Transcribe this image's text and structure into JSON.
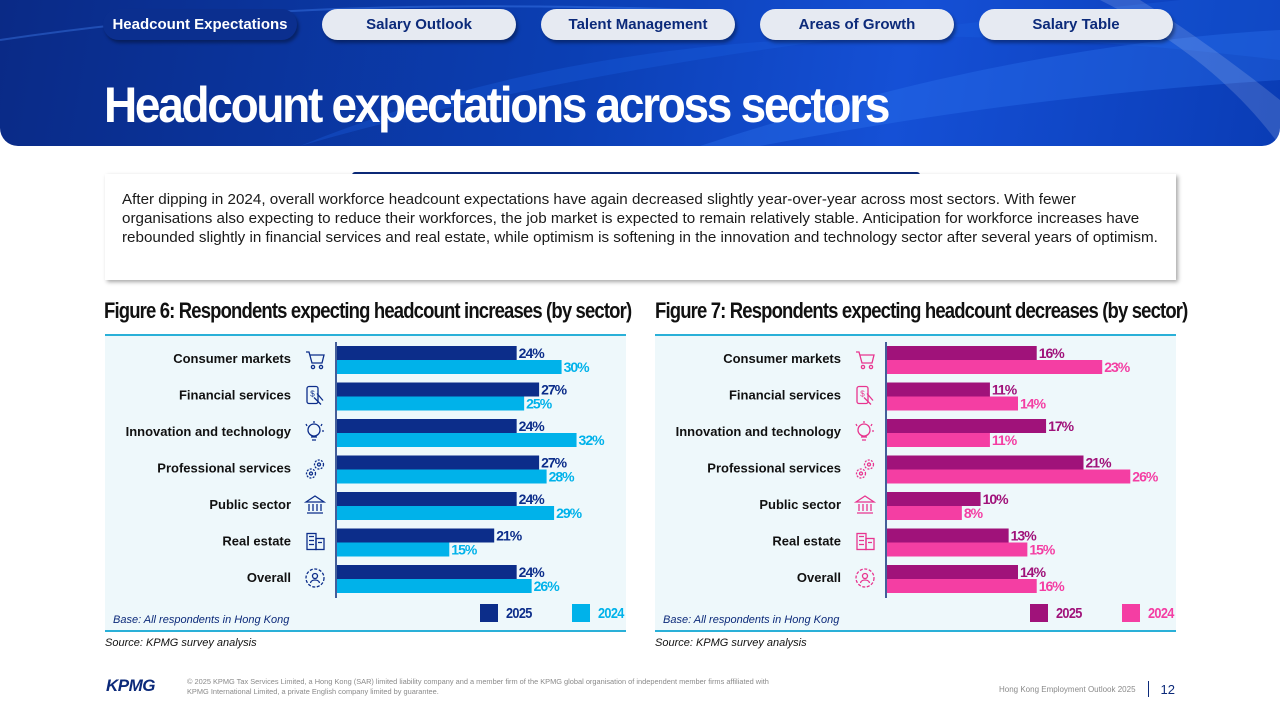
{
  "tabs": [
    {
      "label": "Headcount Expectations",
      "active": true
    },
    {
      "label": "Salary Outlook",
      "active": false
    },
    {
      "label": "Talent Management",
      "active": false
    },
    {
      "label": "Areas of Growth",
      "active": false
    },
    {
      "label": "Salary Table",
      "active": false
    }
  ],
  "page_title": "Headcount expectations across sectors",
  "intro_text": "After dipping in 2024, overall workforce headcount expectations have again decreased slightly year-over-year across most sectors. With fewer organisations also expecting to reduce their workforces, the job market is expected to remain relatively stable. Anticipation for workforce increases have rebounded slightly in financial services and real estate, while optimism is softening in the innovation and technology sector after several years of optimism.",
  "colors": {
    "inc_2025": "#0c2d8a",
    "inc_2024": "#00b2ea",
    "dec_2025": "#a0127a",
    "dec_2024": "#f43ea3",
    "icon_inc": "#0c2d8a",
    "icon_dec": "#e8358f"
  },
  "category_icons": [
    "cart-icon",
    "finance-icon",
    "lightbulb-gear-icon",
    "gears-icon",
    "government-building-icon",
    "office-building-icon",
    "overall-gear-icon"
  ],
  "chart_data": [
    {
      "type": "bar",
      "orientation": "horizontal",
      "title": "Figure 6: Respondents expecting headcount increases (by sector)",
      "categories": [
        "Consumer markets",
        "Financial services",
        "Innovation and technology",
        "Professional services",
        "Public sector",
        "Real estate",
        "Overall"
      ],
      "series": [
        {
          "name": "2025",
          "values": [
            24,
            27,
            24,
            27,
            24,
            21,
            24
          ]
        },
        {
          "name": "2024",
          "values": [
            30,
            25,
            32,
            28,
            29,
            15,
            26
          ]
        }
      ],
      "value_suffix": "%",
      "xlim": [
        0,
        35
      ],
      "legend_position": "bottom-right",
      "base_note": "Base: All respondents in Hong Kong",
      "source": "Source: KPMG survey analysis"
    },
    {
      "type": "bar",
      "orientation": "horizontal",
      "title": "Figure 7: Respondents expecting headcount decreases (by sector)",
      "categories": [
        "Consumer markets",
        "Financial services",
        "Innovation and technology",
        "Professional services",
        "Public sector",
        "Real estate",
        "Overall"
      ],
      "series": [
        {
          "name": "2025",
          "values": [
            16,
            11,
            17,
            21,
            10,
            13,
            14
          ]
        },
        {
          "name": "2024",
          "values": [
            23,
            14,
            11,
            26,
            8,
            15,
            16
          ]
        }
      ],
      "value_suffix": "%",
      "xlim": [
        0,
        28
      ],
      "legend_position": "bottom-right",
      "base_note": "Base: All respondents in Hong Kong",
      "source": "Source: KPMG survey analysis"
    }
  ],
  "footer": {
    "logo": "KPMG",
    "copyright": "© 2025 KPMG Tax Services Limited, a Hong Kong (SAR) limited liability company and a member firm of the KPMG global organisation of independent member firms affiliated with KPMG International Limited, a private English company limited by guarantee.",
    "doc_title": "Hong Kong Employment Outlook 2025",
    "page_number": "12"
  }
}
